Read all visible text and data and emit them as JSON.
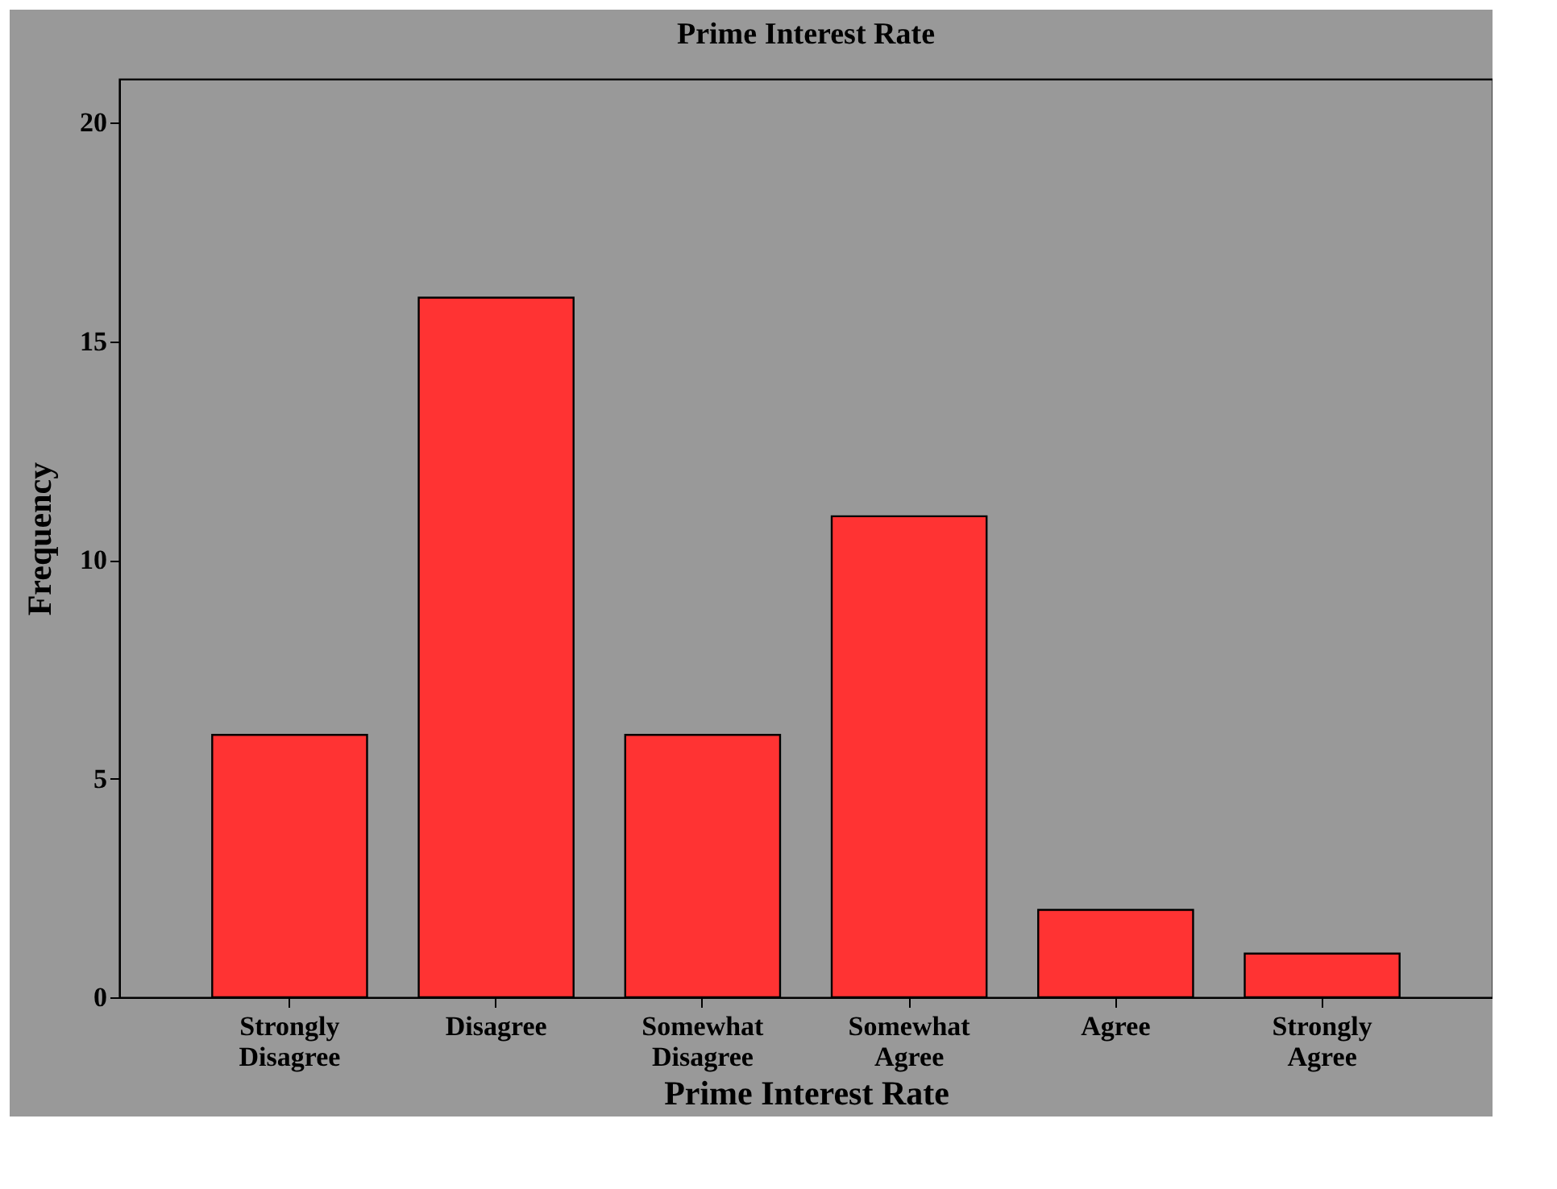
{
  "chart_data": {
    "type": "bar",
    "title": "Prime Interest Rate",
    "xlabel": "Prime Interest Rate",
    "ylabel": "Frequency",
    "categories": [
      "Strongly Disagree",
      "Disagree",
      "Somewhat Disagree",
      "Somewhat Agree",
      "Agree",
      "Strongly Agree"
    ],
    "values": [
      6,
      16,
      6,
      11,
      2,
      1
    ],
    "color": "#ff3333",
    "ylim": [
      0,
      21
    ],
    "yticks": [
      0,
      5,
      10,
      15,
      20
    ],
    "grid": false
  }
}
